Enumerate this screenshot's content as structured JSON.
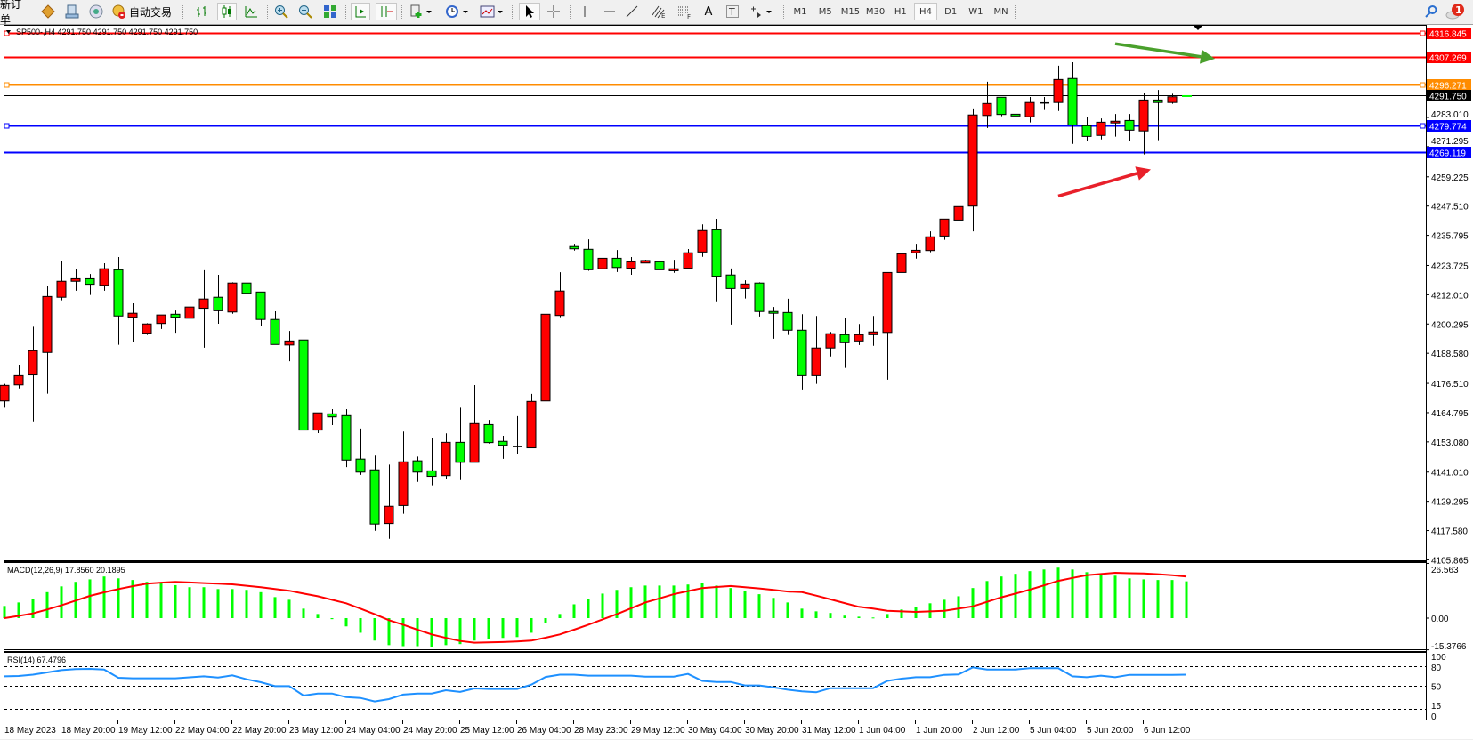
{
  "toolbar": {
    "new_order_label": "新订单",
    "auto_trading_label": "自动交易",
    "timeframes": [
      "M1",
      "M5",
      "M15",
      "M30",
      "H1",
      "H4",
      "D1",
      "W1",
      "MN"
    ],
    "active_timeframe": "H4",
    "notification_count": "1",
    "fibo_e_letter": "E",
    "fibo_f_letter": "F",
    "text_tool_letter": "A",
    "text_label_tool_letter": "T"
  },
  "chart": {
    "header": "SP500-,H4  4291.750 4291.750 4291.750 4291.750",
    "colors": {
      "bull": "#ff0000",
      "bear": "#00ff00",
      "macd_hist": "#00ff00",
      "macd_signal": "#ff0000",
      "rsi": "#1e90ff"
    },
    "price_ticks": [
      "4283.010",
      "4271.295",
      "4259.225",
      "4247.510",
      "4235.795",
      "4223.725",
      "4212.010",
      "4200.295",
      "4188.580",
      "4176.510",
      "4164.795",
      "4153.080",
      "4141.010",
      "4129.295",
      "4117.580",
      "4105.865"
    ],
    "horizontal_lines": [
      {
        "price": 4316.845,
        "label": "4316.845",
        "color": "#ff0000"
      },
      {
        "price": 4307.269,
        "label": "4307.269",
        "color": "#ff0000"
      },
      {
        "price": 4296.271,
        "label": "4296.271",
        "color": "#ff8c00"
      },
      {
        "price": 4291.75,
        "label": "4291.750",
        "color": "#000000"
      },
      {
        "price": 4279.774,
        "label": "4279.774",
        "color": "#0000ff"
      },
      {
        "price": 4269.119,
        "label": "4269.119",
        "color": "#0000ff"
      }
    ],
    "arrows": [
      {
        "name": "green-arrow",
        "color": "#4aa02c",
        "from": {
          "bar": 78,
          "price": 4312.5
        },
        "to": {
          "bar": 85,
          "price": 4306.5
        }
      },
      {
        "name": "red-arrow",
        "color": "#e8202a",
        "from": {
          "bar": 74,
          "price": 4251.5
        },
        "to": {
          "bar": 80.5,
          "price": 4262.2
        }
      }
    ],
    "time_labels": [
      "18 May 2023",
      "18 May 20:00",
      "19 May 12:00",
      "22 May 04:00",
      "22 May 20:00",
      "23 May 12:00",
      "24 May 04:00",
      "24 May 20:00",
      "25 May 12:00",
      "26 May 04:00",
      "28 May 23:00",
      "29 May 12:00",
      "30 May 04:00",
      "30 May 20:00",
      "31 May 12:00",
      "1 Jun 04:00",
      "1 Jun 20:00",
      "2 Jun 12:00",
      "5 Jun 04:00",
      "5 Jun 20:00",
      "6 Jun 12:00"
    ],
    "macd": {
      "label": "MACD(12,26,9) 17.8560 20.1895",
      "axis_labels": [
        "26.563",
        "0.00",
        "-15.3766"
      ],
      "axis_values": [
        26.563,
        0,
        -15.3766
      ]
    },
    "rsi": {
      "label": "RSI(14) 67.4796",
      "levels": [
        80,
        50,
        15
      ],
      "axis_labels": [
        "100",
        "80",
        "50",
        "15",
        "0"
      ],
      "axis_values": [
        100,
        80,
        50,
        15,
        0
      ]
    }
  },
  "chart_data": {
    "type": "candlestick",
    "symbol": "SP500-",
    "timeframe": "H4",
    "ylim": [
      4105.865,
      4316.845
    ],
    "ohlc": [
      [
        4169.5,
        4176.3,
        4166.8,
        4175.7
      ],
      [
        4175.9,
        4184.0,
        4174.5,
        4179.6
      ],
      [
        4179.9,
        4199.2,
        4161.3,
        4189.6
      ],
      [
        4188.9,
        4215.4,
        4172.4,
        4211.3
      ],
      [
        4211.0,
        4225.3,
        4209.8,
        4217.4
      ],
      [
        4217.4,
        4222.1,
        4213.6,
        4218.4
      ],
      [
        4218.4,
        4220.3,
        4211.9,
        4216.2
      ],
      [
        4215.8,
        4224.6,
        4213.6,
        4222.4
      ],
      [
        4222.0,
        4227.1,
        4192.0,
        4203.5
      ],
      [
        4203.0,
        4208.6,
        4192.9,
        4204.6
      ],
      [
        4196.6,
        4200.6,
        4195.9,
        4200.3
      ],
      [
        4200.5,
        4203.9,
        4198.3,
        4203.9
      ],
      [
        4204.2,
        4205.7,
        4196.8,
        4203.0
      ],
      [
        4202.6,
        4207.1,
        4198.3,
        4207.1
      ],
      [
        4206.6,
        4221.8,
        4190.8,
        4210.3
      ],
      [
        4211.0,
        4220.0,
        4200.4,
        4205.6
      ],
      [
        4205.1,
        4217.0,
        4204.4,
        4216.7
      ],
      [
        4216.7,
        4222.5,
        4210.0,
        4212.6
      ],
      [
        4213.1,
        4213.1,
        4199.7,
        4202.1
      ],
      [
        4202.1,
        4205.4,
        4192.1,
        4192.1
      ],
      [
        4191.9,
        4197.5,
        4185.4,
        4193.5
      ],
      [
        4193.9,
        4196.1,
        4153.0,
        4157.8
      ],
      [
        4157.8,
        4164.7,
        4156.6,
        4164.7
      ],
      [
        4164.3,
        4166.2,
        4159.8,
        4163.1
      ],
      [
        4163.6,
        4166.2,
        4143.0,
        4145.8
      ],
      [
        4146.2,
        4158.4,
        4139.9,
        4141.0
      ],
      [
        4141.9,
        4147.6,
        4117.5,
        4120.2
      ],
      [
        4120.4,
        4144.0,
        4114.3,
        4127.3
      ],
      [
        4127.6,
        4157.2,
        4124.3,
        4145.1
      ],
      [
        4145.5,
        4147.2,
        4137.1,
        4141.0
      ],
      [
        4141.5,
        4154.7,
        4135.7,
        4139.3
      ],
      [
        4139.6,
        4156.5,
        4138.2,
        4152.9
      ],
      [
        4152.9,
        4166.8,
        4137.8,
        4144.9
      ],
      [
        4144.9,
        4175.8,
        4144.9,
        4160.4
      ],
      [
        4160.0,
        4161.9,
        4152.4,
        4152.8
      ],
      [
        4153.3,
        4155.5,
        4146.3,
        4151.7
      ],
      [
        4151.4,
        4163.4,
        4148.2,
        4151.4
      ],
      [
        4150.7,
        4172.3,
        4150.7,
        4169.3
      ],
      [
        4169.5,
        4211.8,
        4155.9,
        4204.2
      ],
      [
        4203.7,
        4221.0,
        4203.0,
        4213.5
      ],
      [
        4231.3,
        4232.4,
        4229.7,
        4230.4
      ],
      [
        4230.2,
        4234.2,
        4221.6,
        4222.0
      ],
      [
        4222.4,
        4232.4,
        4221.5,
        4226.6
      ],
      [
        4226.6,
        4229.9,
        4221.1,
        4222.9
      ],
      [
        4222.6,
        4227.1,
        4220.0,
        4225.2
      ],
      [
        4224.7,
        4226.0,
        4224.7,
        4225.7
      ],
      [
        4225.2,
        4229.6,
        4220.8,
        4222.0
      ],
      [
        4221.6,
        4226.0,
        4220.8,
        4222.4
      ],
      [
        4222.6,
        4230.3,
        4222.2,
        4228.8
      ],
      [
        4229.1,
        4240.2,
        4227.2,
        4237.7
      ],
      [
        4238.0,
        4242.4,
        4209.4,
        4219.4
      ],
      [
        4219.9,
        4222.5,
        4200.1,
        4214.5
      ],
      [
        4214.5,
        4217.8,
        4210.5,
        4216.3
      ],
      [
        4216.7,
        4217.0,
        4203.3,
        4205.3
      ],
      [
        4205.3,
        4207.1,
        4194.4,
        4204.6
      ],
      [
        4204.9,
        4210.4,
        4195.9,
        4197.8
      ],
      [
        4197.8,
        4204.2,
        4174.1,
        4179.6
      ],
      [
        4179.6,
        4203.5,
        4176.3,
        4190.7
      ],
      [
        4190.7,
        4197.1,
        4187.3,
        4196.4
      ],
      [
        4196.0,
        4202.8,
        4182.7,
        4192.8
      ],
      [
        4193.5,
        4200.3,
        4191.9,
        4196.0
      ],
      [
        4196.0,
        4203.5,
        4191.6,
        4197.1
      ],
      [
        4196.9,
        4220.9,
        4178.0,
        4220.9
      ],
      [
        4220.9,
        4239.6,
        4219.0,
        4228.4
      ],
      [
        4228.8,
        4232.4,
        4226.5,
        4229.8
      ],
      [
        4229.7,
        4237.4,
        4229.0,
        4235.2
      ],
      [
        4235.5,
        4242.3,
        4234.0,
        4242.3
      ],
      [
        4241.9,
        4252.4,
        4241.1,
        4247.3
      ],
      [
        4247.5,
        4286.6,
        4237.4,
        4284.0
      ],
      [
        4283.8,
        4297.3,
        4278.8,
        4288.6
      ],
      [
        4291.1,
        4291.1,
        4283.5,
        4284.2
      ],
      [
        4284.3,
        4287.3,
        4280.0,
        4283.6
      ],
      [
        4283.3,
        4291.2,
        4281.0,
        4289.0
      ],
      [
        4289.0,
        4291.2,
        4286.0,
        4289.0
      ],
      [
        4289.0,
        4303.7,
        4285.6,
        4298.2
      ],
      [
        4298.6,
        4305.1,
        4272.4,
        4280.0
      ],
      [
        4279.7,
        4283.0,
        4273.5,
        4275.4
      ],
      [
        4275.8,
        4282.6,
        4274.2,
        4281.1
      ],
      [
        4280.8,
        4284.4,
        4275.3,
        4281.5
      ],
      [
        4281.8,
        4284.4,
        4273.5,
        4277.9
      ],
      [
        4277.6,
        4293.0,
        4268.2,
        4290.0
      ],
      [
        4290.0,
        4294.0,
        4273.9,
        4289.0
      ],
      [
        4289.0,
        4292.5,
        4288.5,
        4291.3
      ],
      [
        4291.75,
        4291.75,
        4291.75,
        4291.75
      ]
    ],
    "macd_histogram": [
      5.9,
      7.6,
      9.4,
      12.6,
      15.4,
      17.6,
      18.8,
      20.2,
      19.3,
      18.5,
      17.6,
      17.0,
      16.0,
      15.0,
      15.0,
      14.1,
      14.1,
      13.7,
      12.6,
      10.2,
      8.9,
      4.6,
      2.0,
      -0.5,
      -4.0,
      -7.1,
      -10.9,
      -13.1,
      -13.6,
      -13.6,
      -13.9,
      -13.1,
      -12.6,
      -10.9,
      -10.1,
      -9.6,
      -9.2,
      -7.1,
      -2.5,
      2.0,
      6.7,
      9.4,
      11.9,
      13.7,
      15.0,
      15.8,
      15.8,
      15.8,
      16.3,
      17.1,
      15.8,
      14.6,
      13.3,
      11.6,
      9.8,
      7.6,
      4.6,
      3.3,
      2.5,
      1.2,
      0.7,
      0.3,
      2.0,
      4.2,
      5.5,
      7.2,
      8.9,
      10.6,
      14.6,
      18.0,
      20.2,
      21.5,
      22.8,
      23.6,
      24.5,
      23.6,
      22.3,
      21.5,
      20.6,
      19.3,
      18.8,
      18.5,
      18.5,
      17.856
    ],
    "macd_signal": [
      0.0,
      1.1,
      2.3,
      4.2,
      6.2,
      8.5,
      10.8,
      12.5,
      14.1,
      15.5,
      16.7,
      17.2,
      17.6,
      17.3,
      17.0,
      16.7,
      16.4,
      15.7,
      15.0,
      14.1,
      13.3,
      11.9,
      10.6,
      8.9,
      7.2,
      4.6,
      1.9,
      -1.0,
      -3.2,
      -5.6,
      -7.9,
      -9.6,
      -11.1,
      -11.9,
      -11.8,
      -11.6,
      -11.3,
      -10.9,
      -9.5,
      -7.9,
      -5.6,
      -3.2,
      -0.6,
      1.9,
      4.8,
      7.6,
      9.6,
      11.6,
      13.1,
      14.6,
      15.1,
      15.6,
      15.0,
      14.4,
      13.7,
      12.9,
      12.6,
      10.9,
      9.1,
      7.3,
      5.5,
      4.6,
      3.6,
      3.3,
      3.0,
      3.3,
      3.6,
      4.6,
      5.7,
      7.9,
      10.1,
      11.9,
      13.8,
      15.9,
      18.1,
      19.5,
      20.8,
      21.4,
      22.0,
      21.8,
      21.7,
      21.3,
      20.8,
      20.1895
    ],
    "rsi": [
      65,
      65.5,
      67.5,
      71,
      74.5,
      76,
      76.4,
      75.5,
      62.7,
      62,
      62,
      62,
      62,
      63.5,
      65,
      63,
      66.4,
      60.5,
      56,
      50,
      50,
      35.5,
      38.6,
      38.6,
      33,
      31.8,
      26.4,
      30,
      37,
      38.6,
      38.6,
      43.6,
      41,
      46.4,
      45.5,
      45.5,
      45.5,
      52.3,
      64,
      67.5,
      67.5,
      66,
      66,
      66,
      66,
      64.5,
      64.5,
      64.5,
      68.6,
      58,
      56.4,
      56.4,
      51,
      51,
      48,
      44.5,
      42,
      40.5,
      46.8,
      46.8,
      46.8,
      46.8,
      58,
      61.4,
      63.6,
      63.6,
      67.3,
      68,
      78.6,
      75.5,
      75.5,
      75.5,
      77.3,
      77.3,
      77.3,
      65,
      63.6,
      66,
      63.6,
      67.3,
      67.3,
      67.3,
      67.3,
      67.4796
    ]
  }
}
